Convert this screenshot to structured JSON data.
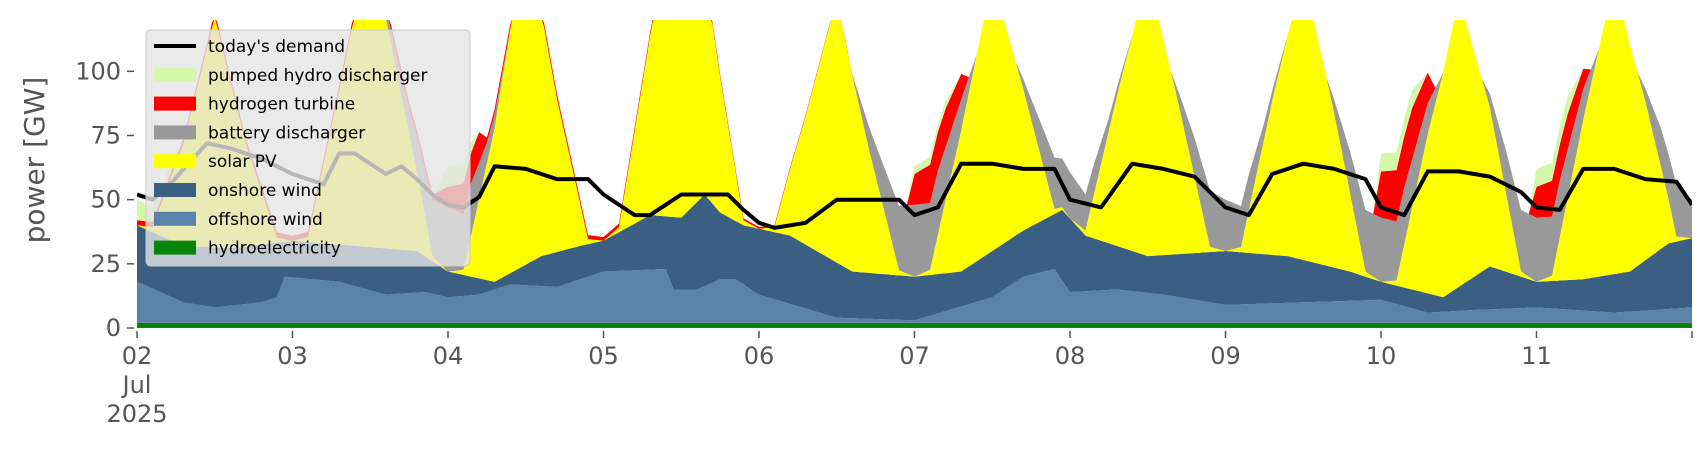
{
  "chart_data": {
    "type": "area",
    "ylabel": "power [GW]",
    "ylim": [
      0,
      120
    ],
    "xlim_days": [
      2,
      12
    ],
    "y_ticks": [
      0,
      25,
      50,
      75,
      100
    ],
    "x_tick_labels": [
      "02",
      "03",
      "04",
      "05",
      "06",
      "07",
      "08",
      "09",
      "10",
      "11"
    ],
    "x_tick_days": [
      2,
      3,
      4,
      5,
      6,
      7,
      8,
      9,
      10,
      11
    ],
    "x_month_label": "Jul",
    "x_year_label": "2025",
    "grid": false,
    "legend_position": "upper-left",
    "colors": {
      "demand": "#000000",
      "pumped_hydro": "#d4f7a9",
      "hydrogen": "#ff0000",
      "battery": "#999999",
      "solar": "#ffff00",
      "onshore": "#3a5f82",
      "offshore": "#5b82a8",
      "hydro": "#088408",
      "background": "#ffffff",
      "legend_bg": "#e5e5e5"
    },
    "legend": [
      {
        "key": "demand",
        "label": "today's demand",
        "kind": "line"
      },
      {
        "key": "pumped_hydro",
        "label": "pumped hydro discharger",
        "kind": "patch"
      },
      {
        "key": "hydrogen",
        "label": "hydrogen turbine",
        "kind": "patch"
      },
      {
        "key": "battery",
        "label": "battery discharger",
        "kind": "patch"
      },
      {
        "key": "solar",
        "label": "solar PV",
        "kind": "patch"
      },
      {
        "key": "onshore",
        "label": "onshore wind",
        "kind": "patch"
      },
      {
        "key": "offshore",
        "label": "offshore wind",
        "kind": "patch"
      },
      {
        "key": "hydro",
        "label": "hydroelectricity",
        "kind": "patch"
      }
    ],
    "hydro_level": 2,
    "offshore_wind": {
      "x": [
        2.0,
        2.3,
        2.5,
        2.8,
        2.9,
        2.95,
        3.3,
        3.6,
        3.85,
        4.0,
        4.2,
        4.4,
        4.7,
        5.0,
        5.4,
        5.45,
        5.6,
        5.75,
        5.85,
        6.0,
        6.5,
        7.0,
        7.5,
        7.7,
        7.9,
        8.0,
        8.3,
        8.6,
        9.0,
        9.5,
        10.0,
        10.3,
        10.6,
        11.0,
        11.5,
        12.0
      ],
      "y": [
        18,
        10,
        8,
        10,
        12,
        20,
        18,
        13,
        14,
        12,
        13,
        17,
        16,
        22,
        23,
        15,
        15,
        19,
        19,
        13,
        4,
        3,
        12,
        20,
        23,
        14,
        15,
        13,
        9,
        10,
        11,
        6,
        7,
        8,
        6,
        8
      ]
    },
    "onshore_wind": {
      "x": [
        2.0,
        2.3,
        2.6,
        3.0,
        3.4,
        3.8,
        4.0,
        4.3,
        4.6,
        4.85,
        5.0,
        5.3,
        5.5,
        5.65,
        5.75,
        5.9,
        6.2,
        6.6,
        7.0,
        7.3,
        7.7,
        7.95,
        8.1,
        8.5,
        9.0,
        9.4,
        9.8,
        10.0,
        10.4,
        10.7,
        11.0,
        11.3,
        11.6,
        11.85,
        12.0
      ],
      "y": [
        40,
        32,
        31,
        34,
        32,
        30,
        22,
        18,
        28,
        32,
        34,
        44,
        43,
        52,
        45,
        40,
        36,
        22,
        20,
        22,
        38,
        46,
        36,
        28,
        30,
        28,
        22,
        18,
        12,
        24,
        18,
        19,
        22,
        33,
        35
      ]
    },
    "solar_pv": {
      "x": [
        2.0,
        2.1,
        2.3,
        2.5,
        2.7,
        2.9,
        3.0,
        3.1,
        3.3,
        3.5,
        3.7,
        3.9,
        4.0,
        4.1,
        4.3,
        4.5,
        4.7,
        4.9,
        5.0,
        5.1,
        5.3,
        5.5,
        5.7,
        5.9,
        6.0,
        6.1,
        6.3,
        6.5,
        6.7,
        6.9,
        7.0,
        7.1,
        7.3,
        7.5,
        7.7,
        7.9,
        8.0,
        8.1,
        8.3,
        8.5,
        8.7,
        8.9,
        9.0,
        9.1,
        9.3,
        9.5,
        9.7,
        9.9,
        10.0,
        10.1,
        10.3,
        10.5,
        10.7,
        10.9,
        11.0,
        11.1,
        11.3,
        11.5,
        11.7,
        11.9,
        12.0
      ],
      "y": [
        0,
        2,
        40,
        90,
        40,
        2,
        0,
        2,
        60,
        120,
        60,
        2,
        0,
        2,
        60,
        130,
        60,
        2,
        0,
        2,
        70,
        135,
        70,
        2,
        0,
        2,
        50,
        103,
        50,
        2,
        0,
        2,
        55,
        106,
        55,
        2,
        0,
        2,
        58,
        110,
        58,
        2,
        0,
        2,
        60,
        112,
        60,
        2,
        0,
        2,
        62,
        113,
        62,
        2,
        0,
        2,
        62,
        115,
        62,
        2,
        0
      ]
    },
    "battery_discharger": {
      "x": [
        2.0,
        3.5,
        3.75,
        3.9,
        4.0,
        4.15,
        4.25,
        4.4,
        6.6,
        6.75,
        6.9,
        7.0,
        7.15,
        7.3,
        7.4,
        7.65,
        7.8,
        7.9,
        8.0,
        8.15,
        8.25,
        8.4,
        8.65,
        8.8,
        8.9,
        9.0,
        9.15,
        9.25,
        9.4,
        9.65,
        9.8,
        9.9,
        10.0,
        10.15,
        10.3,
        10.4,
        10.65,
        10.8,
        10.9,
        11.0,
        11.15,
        11.3,
        11.4,
        11.65,
        11.8,
        11.9,
        12.0
      ],
      "y": [
        0,
        0,
        10,
        22,
        25,
        20,
        8,
        0,
        0,
        12,
        25,
        28,
        25,
        12,
        0,
        0,
        12,
        20,
        18,
        12,
        5,
        0,
        0,
        15,
        22,
        20,
        14,
        6,
        0,
        0,
        16,
        24,
        25,
        22,
        12,
        0,
        0,
        16,
        24,
        25,
        22,
        12,
        0,
        0,
        15,
        20,
        15
      ]
    },
    "hydrogen_turbine": {
      "x": [
        2.0,
        3.9,
        4.0,
        4.1,
        4.2,
        4.25,
        6.95,
        7.0,
        7.1,
        7.2,
        7.3,
        7.35,
        9.95,
        10.0,
        10.1,
        10.2,
        10.3,
        10.35,
        10.95,
        11.0,
        11.1,
        11.2,
        11.3,
        11.35,
        12.0
      ],
      "y": [
        2,
        2,
        8,
        12,
        12,
        2,
        0,
        12,
        15,
        15,
        10,
        0,
        0,
        18,
        20,
        20,
        12,
        0,
        0,
        12,
        14,
        14,
        8,
        0,
        0
      ]
    },
    "pumped_hydro_discharger": {
      "x": [
        2.0,
        2.2,
        2.3,
        3.9,
        4.0,
        4.1,
        4.2,
        6.95,
        7.0,
        7.1,
        7.2,
        7.3,
        9.95,
        10.0,
        10.1,
        10.2,
        10.3,
        10.95,
        11.0,
        11.1,
        11.2,
        11.3,
        12.0
      ],
      "y": [
        8,
        4,
        0,
        0,
        8,
        8,
        0,
        0,
        3,
        3,
        3,
        0,
        0,
        7,
        7,
        7,
        0,
        0,
        7,
        7,
        7,
        0,
        0
      ]
    },
    "todays_demand": {
      "x": [
        2.0,
        2.1,
        2.2,
        2.3,
        2.45,
        2.6,
        2.8,
        3.0,
        3.2,
        3.3,
        3.4,
        3.5,
        3.6,
        3.7,
        3.8,
        3.9,
        4.0,
        4.1,
        4.2,
        4.3,
        4.5,
        4.7,
        4.9,
        5.0,
        5.2,
        5.3,
        5.4,
        5.5,
        5.7,
        5.8,
        5.9,
        6.0,
        6.1,
        6.3,
        6.5,
        6.7,
        6.9,
        7.0,
        7.15,
        7.3,
        7.5,
        7.7,
        7.9,
        8.0,
        8.2,
        8.4,
        8.6,
        8.8,
        9.0,
        9.15,
        9.3,
        9.5,
        9.7,
        9.9,
        10.0,
        10.15,
        10.3,
        10.5,
        10.7,
        10.9,
        11.0,
        11.15,
        11.3,
        11.5,
        11.7,
        11.9,
        12.0
      ],
      "y": [
        52,
        50,
        55,
        62,
        72,
        70,
        66,
        60,
        56,
        68,
        68,
        64,
        60,
        63,
        58,
        52,
        48,
        47,
        51,
        63,
        62,
        58,
        58,
        52,
        44,
        44,
        48,
        52,
        52,
        52,
        46,
        41,
        39,
        41,
        50,
        50,
        50,
        44,
        47,
        64,
        64,
        62,
        62,
        50,
        47,
        64,
        62,
        59,
        47,
        44,
        60,
        64,
        62,
        58,
        47,
        44,
        61,
        61,
        59,
        53,
        47,
        46,
        62,
        62,
        58,
        57,
        48
      ]
    }
  }
}
